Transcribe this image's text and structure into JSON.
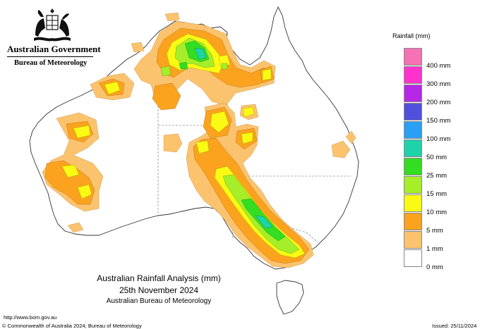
{
  "header": {
    "government": "Australian Government",
    "bureau": "Bureau of Meteorology"
  },
  "legend": {
    "title": "Rainfall (mm)",
    "items": [
      {
        "label": "",
        "color": "#f572b5"
      },
      {
        "label": "400 mm",
        "color": "#ff33cc"
      },
      {
        "label": "300 mm",
        "color": "#b428e6"
      },
      {
        "label": "200 mm",
        "color": "#5050dc"
      },
      {
        "label": "150 mm",
        "color": "#2aa0f5"
      },
      {
        "label": "100 mm",
        "color": "#1ed2aa"
      },
      {
        "label": "50 mm",
        "color": "#33dd22"
      },
      {
        "label": "25 mm",
        "color": "#a6ee2a"
      },
      {
        "label": "15 mm",
        "color": "#fafa14"
      },
      {
        "label": "10 mm",
        "color": "#fba31e"
      },
      {
        "label": "5 mm",
        "color": "#fcc36e"
      },
      {
        "label": "1 mm",
        "color": "#ffffff"
      },
      {
        "label": "0 mm",
        "color": ""
      }
    ]
  },
  "caption": {
    "title": "Australian Rainfall Analysis (mm)",
    "date": "25th November 2024",
    "agency": "Australian Bureau of Meteorology"
  },
  "footer": {
    "url": "http://www.bom.gov.au",
    "copyright": "© Commonwealth of Australia 2024, Bureau of Meteorology",
    "issued": "Issued: 25/11/2024"
  }
}
